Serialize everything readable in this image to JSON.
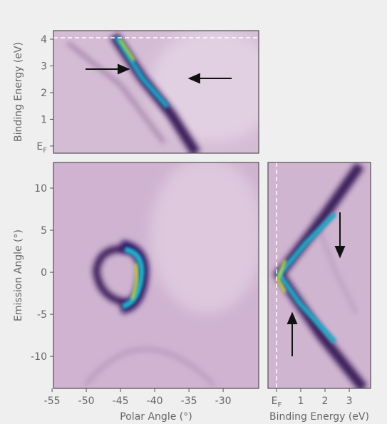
{
  "panels": [
    {
      "ylabel": "Binding Energy (eV)",
      "xlim": [
        -54.8,
        -24.8
      ],
      "ylim": [
        -0.27,
        4.32
      ],
      "yticks": [
        {
          "value": 0,
          "label": "E",
          "sub": "F"
        },
        1,
        2,
        3,
        4
      ]
    },
    {
      "xlabel": "Polar Angle (°)",
      "ylabel": "Emission Angle (°)",
      "xlim": [
        -54.8,
        -24.8
      ],
      "ylim": [
        -13.8,
        13.05
      ],
      "xticks": [
        -55,
        -50,
        -45,
        -40,
        -35,
        -30
      ],
      "yticks": [
        10,
        5,
        0,
        -5,
        -10
      ]
    },
    {
      "xlabel": "Binding Energy (eV)",
      "xlim": [
        -0.35,
        3.88
      ],
      "ylim": [
        -13.8,
        13.05
      ],
      "xticks": [
        {
          "value": 0,
          "label": "E",
          "sub": "F"
        },
        1,
        2,
        3
      ]
    }
  ]
}
